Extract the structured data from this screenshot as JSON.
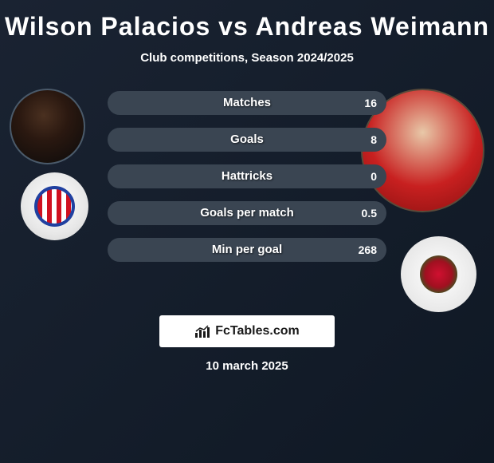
{
  "header": {
    "title": "Wilson Palacios vs Andreas Weimann",
    "subtitle": "Club competitions, Season 2024/2025"
  },
  "players": {
    "left": {
      "name": "Wilson Palacios",
      "club_hint": "Stoke City"
    },
    "right": {
      "name": "Andreas Weimann",
      "club_hint": "Blackburn Rovers"
    }
  },
  "comparison": {
    "type": "horizontal-bar-pair",
    "track_color": "#3a4552",
    "fill_color": "#b8941f",
    "text_color": "#ffffff",
    "label_fontsize": 15,
    "value_fontsize": 14,
    "rows": [
      {
        "label": "Matches",
        "left": null,
        "right": "16",
        "fill_pct": 0
      },
      {
        "label": "Goals",
        "left": null,
        "right": "8",
        "fill_pct": 0
      },
      {
        "label": "Hattricks",
        "left": null,
        "right": "0",
        "fill_pct": 0
      },
      {
        "label": "Goals per match",
        "left": null,
        "right": "0.5",
        "fill_pct": 0
      },
      {
        "label": "Min per goal",
        "left": null,
        "right": "268",
        "fill_pct": 0
      }
    ]
  },
  "branding": {
    "site_name": "FcTables.com"
  },
  "footer": {
    "date": "10 march 2025"
  },
  "palette": {
    "bg_gradient_from": "#1a2332",
    "bg_gradient_to": "#0f1824",
    "title_color": "#ffffff"
  }
}
